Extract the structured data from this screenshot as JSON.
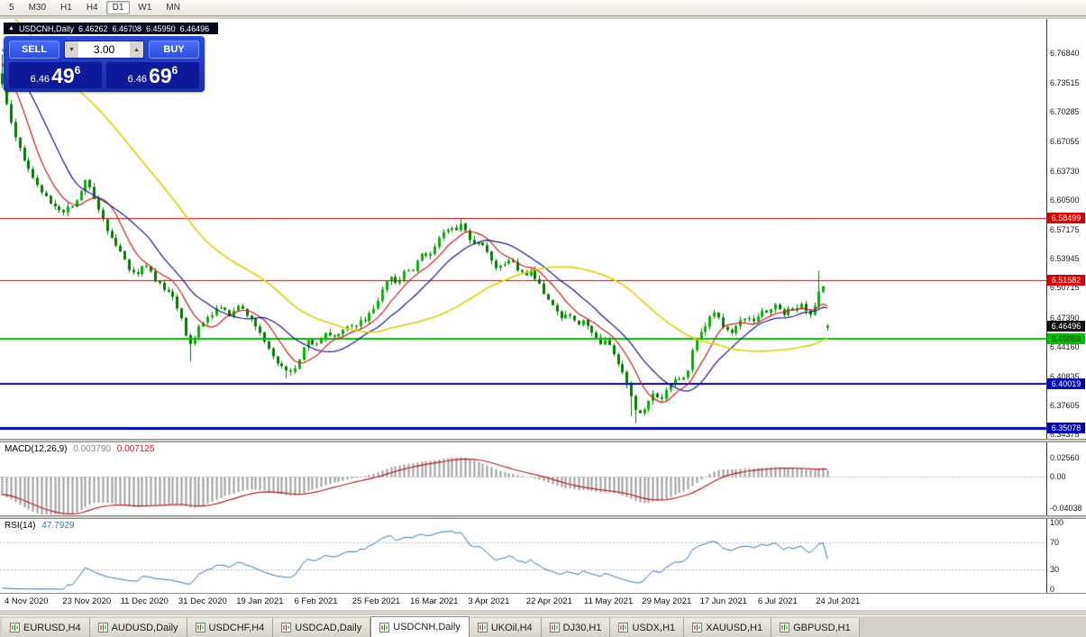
{
  "toolbar": {
    "timeframes": [
      "5",
      "M30",
      "H1",
      "H4",
      "D1",
      "W1",
      "MN"
    ],
    "active": "D1"
  },
  "ohlc_header": {
    "collapse_icon": "▲",
    "symbol": "USDCNH,Daily",
    "open": "6.46262",
    "high": "6.46708",
    "low": "6.45950",
    "close": "6.46496"
  },
  "trade_panel": {
    "sell_label": "SELL",
    "buy_label": "BUY",
    "lot_value": "3.00",
    "lot_down_icon": "▼",
    "lot_up_icon": "▲",
    "sell_price": {
      "small": "6.46",
      "big": "49",
      "sup": "6"
    },
    "buy_price": {
      "small": "6.46",
      "big": "69",
      "sup": "6"
    }
  },
  "price_axis": {
    "ticks": [
      "6.76840",
      "6.73515",
      "6.70285",
      "6.67055",
      "6.63730",
      "6.60500",
      "6.57175",
      "6.53945",
      "6.50715",
      "6.47390",
      "6.44160",
      "6.40835",
      "6.37605",
      "6.34375"
    ],
    "current_tag": {
      "label": "6.46496",
      "bg": "#101010",
      "fg": "#ffffff"
    }
  },
  "macd_panel": {
    "name": "MACD(12,26,9)",
    "value_main": "0.003790",
    "value_signal": "0.007125",
    "axis_ticks": [
      "0.02560",
      "0.00",
      "-0.04038"
    ],
    "histogram_color": "#9e9e9e",
    "signal_color": "#b22222"
  },
  "rsi_panel": {
    "name": "RSI(14)",
    "value": "47.7929",
    "axis_ticks": [
      "100",
      "70",
      "30",
      "0"
    ],
    "levels": [
      70,
      30
    ],
    "line_color": "#3577b5"
  },
  "time_axis": {
    "labels": [
      "4 Nov 2020",
      "23 Nov 2020",
      "11 Dec 2020",
      "31 Dec 2020",
      "19 Jan 2021",
      "6 Feb 2021",
      "25 Feb 2021",
      "16 Mar 2021",
      "3 Apr 2021",
      "22 Apr 2021",
      "11 May 2021",
      "29 May 2021",
      "17 Jun 2021",
      "6 Jul 2021",
      "24 Jul 2021"
    ]
  },
  "tabs": [
    {
      "label": "EURUSD,H4",
      "active": false
    },
    {
      "label": "AUDUSD,Daily",
      "active": false
    },
    {
      "label": "USDCHF,H4",
      "active": false
    },
    {
      "label": "USDCAD,Daily",
      "active": false
    },
    {
      "label": "USDCNH,Daily",
      "active": true
    },
    {
      "label": "UKOil,H4",
      "active": false
    },
    {
      "label": "DJ30,H1",
      "active": false
    },
    {
      "label": "USDX,H1",
      "active": false
    },
    {
      "label": "XAUUSD,H1",
      "active": false
    },
    {
      "label": "GBPUSD,H1",
      "active": false
    }
  ],
  "chart_data": {
    "type": "candlestick",
    "symbol": "USDCNH",
    "timeframe": "Daily",
    "current_ohlc": {
      "open": 6.46262,
      "high": 6.46708,
      "low": 6.4595,
      "close": 6.46496
    },
    "y_axis_range": {
      "min": 6.34,
      "max": 6.8
    },
    "candle_count": 190,
    "candle_color_up": "#00b400",
    "candle_color_down": "#007a00",
    "levels": [
      {
        "price": 6.58499,
        "label": "6.58499",
        "color": "#e00000",
        "width": 1,
        "text_color": "#ffffff"
      },
      {
        "price": 6.51582,
        "label": "6.51582",
        "color": "#e00000",
        "width": 1,
        "text_color": "#ffffff"
      },
      {
        "price": 6.45059,
        "label": "6.45059",
        "color": "#00c000",
        "width": 2,
        "text_color": "#003000"
      },
      {
        "price": 6.40019,
        "label": "6.40019",
        "color": "#0000c0",
        "width": 2,
        "text_color": "#ffffff"
      },
      {
        "price": 6.35078,
        "label": "6.35078",
        "color": "#0000c0",
        "width": 3,
        "text_color": "#ffffff"
      }
    ],
    "moving_averages": [
      {
        "period": 8,
        "color": "#cc2020"
      },
      {
        "period": 16,
        "color": "#1a1a90"
      },
      {
        "period": 45,
        "color": "#e0d000"
      }
    ],
    "warmup_anchors": [
      [
        -300,
        6.96
      ],
      [
        -220,
        6.9
      ],
      [
        -150,
        6.85
      ],
      [
        -90,
        6.81
      ],
      [
        -40,
        6.78
      ],
      [
        -12,
        6.757
      ],
      [
        -5,
        6.75
      ]
    ],
    "price_path_anchors": [
      [
        0,
        6.745
      ],
      [
        8,
        6.708
      ],
      [
        16,
        6.678
      ],
      [
        24,
        6.656
      ],
      [
        32,
        6.64
      ],
      [
        40,
        6.625
      ],
      [
        48,
        6.612
      ],
      [
        56,
        6.602
      ],
      [
        64,
        6.596
      ],
      [
        72,
        6.592
      ],
      [
        80,
        6.6
      ],
      [
        88,
        6.612
      ],
      [
        96,
        6.628
      ],
      [
        102,
        6.615
      ],
      [
        108,
        6.598
      ],
      [
        114,
        6.585
      ],
      [
        120,
        6.568
      ],
      [
        126,
        6.556
      ],
      [
        132,
        6.548
      ],
      [
        138,
        6.537
      ],
      [
        144,
        6.528
      ],
      [
        150,
        6.518
      ],
      [
        156,
        6.528
      ],
      [
        162,
        6.532
      ],
      [
        168,
        6.522
      ],
      [
        174,
        6.512
      ],
      [
        180,
        6.507
      ],
      [
        186,
        6.502
      ],
      [
        192,
        6.498
      ],
      [
        198,
        6.482
      ],
      [
        204,
        6.46
      ],
      [
        210,
        6.443
      ],
      [
        216,
        6.452
      ],
      [
        222,
        6.466
      ],
      [
        228,
        6.474
      ],
      [
        234,
        6.478
      ],
      [
        240,
        6.485
      ],
      [
        246,
        6.483
      ],
      [
        252,
        6.479
      ],
      [
        258,
        6.477
      ],
      [
        264,
        6.486
      ],
      [
        270,
        6.484
      ],
      [
        276,
        6.475
      ],
      [
        282,
        6.466
      ],
      [
        288,
        6.455
      ],
      [
        294,
        6.443
      ],
      [
        300,
        6.434
      ],
      [
        306,
        6.426
      ],
      [
        312,
        6.418
      ],
      [
        318,
        6.412
      ],
      [
        324,
        6.415
      ],
      [
        330,
        6.424
      ],
      [
        336,
        6.437
      ],
      [
        342,
        6.448
      ],
      [
        348,
        6.445
      ],
      [
        354,
        6.45
      ],
      [
        360,
        6.458
      ],
      [
        366,
        6.455
      ],
      [
        372,
        6.452
      ],
      [
        378,
        6.458
      ],
      [
        384,
        6.463
      ],
      [
        390,
        6.468
      ],
      [
        396,
        6.466
      ],
      [
        402,
        6.47
      ],
      [
        408,
        6.476
      ],
      [
        414,
        6.484
      ],
      [
        420,
        6.495
      ],
      [
        426,
        6.507
      ],
      [
        432,
        6.519
      ],
      [
        438,
        6.51
      ],
      [
        444,
        6.516
      ],
      [
        450,
        6.527
      ],
      [
        456,
        6.521
      ],
      [
        462,
        6.534
      ],
      [
        468,
        6.545
      ],
      [
        474,
        6.54
      ],
      [
        480,
        6.553
      ],
      [
        486,
        6.56
      ],
      [
        492,
        6.568
      ],
      [
        498,
        6.574
      ],
      [
        504,
        6.571
      ],
      [
        510,
        6.579
      ],
      [
        516,
        6.571
      ],
      [
        522,
        6.561
      ],
      [
        528,
        6.553
      ],
      [
        534,
        6.558
      ],
      [
        540,
        6.546
      ],
      [
        546,
        6.536
      ],
      [
        552,
        6.529
      ],
      [
        558,
        6.535
      ],
      [
        564,
        6.54
      ],
      [
        570,
        6.533
      ],
      [
        576,
        6.527
      ],
      [
        582,
        6.521
      ],
      [
        588,
        6.526
      ],
      [
        594,
        6.516
      ],
      [
        600,
        6.506
      ],
      [
        606,
        6.499
      ],
      [
        612,
        6.491
      ],
      [
        618,
        6.482
      ],
      [
        624,
        6.474
      ],
      [
        630,
        6.479
      ],
      [
        636,
        6.471
      ],
      [
        642,
        6.466
      ],
      [
        648,
        6.471
      ],
      [
        654,
        6.461
      ],
      [
        660,
        6.452
      ],
      [
        666,
        6.444
      ],
      [
        672,
        6.449
      ],
      [
        678,
        6.437
      ],
      [
        684,
        6.426
      ],
      [
        690,
        6.411
      ],
      [
        696,
        6.396
      ],
      [
        702,
        6.379
      ],
      [
        708,
        6.368
      ],
      [
        714,
        6.373
      ],
      [
        720,
        6.383
      ],
      [
        726,
        6.389
      ],
      [
        732,
        6.381
      ],
      [
        738,
        6.391
      ],
      [
        744,
        6.399
      ],
      [
        750,
        6.406
      ],
      [
        756,
        6.401
      ],
      [
        762,
        6.413
      ],
      [
        768,
        6.441
      ],
      [
        774,
        6.456
      ],
      [
        780,
        6.463
      ],
      [
        786,
        6.471
      ],
      [
        792,
        6.479
      ],
      [
        798,
        6.471
      ],
      [
        804,
        6.463
      ],
      [
        810,
        6.456
      ],
      [
        816,
        6.463
      ],
      [
        822,
        6.471
      ],
      [
        828,
        6.476
      ],
      [
        834,
        6.469
      ],
      [
        840,
        6.476
      ],
      [
        846,
        6.483
      ],
      [
        852,
        6.479
      ],
      [
        858,
        6.489
      ],
      [
        864,
        6.483
      ],
      [
        870,
        6.477
      ],
      [
        876,
        6.485
      ],
      [
        882,
        6.479
      ],
      [
        888,
        6.489
      ],
      [
        894,
        6.483
      ],
      [
        900,
        6.479
      ],
      [
        906,
        6.492
      ],
      [
        910,
        6.513
      ],
      [
        914,
        6.506
      ],
      [
        918,
        6.478
      ],
      [
        922,
        6.465
      ]
    ]
  }
}
